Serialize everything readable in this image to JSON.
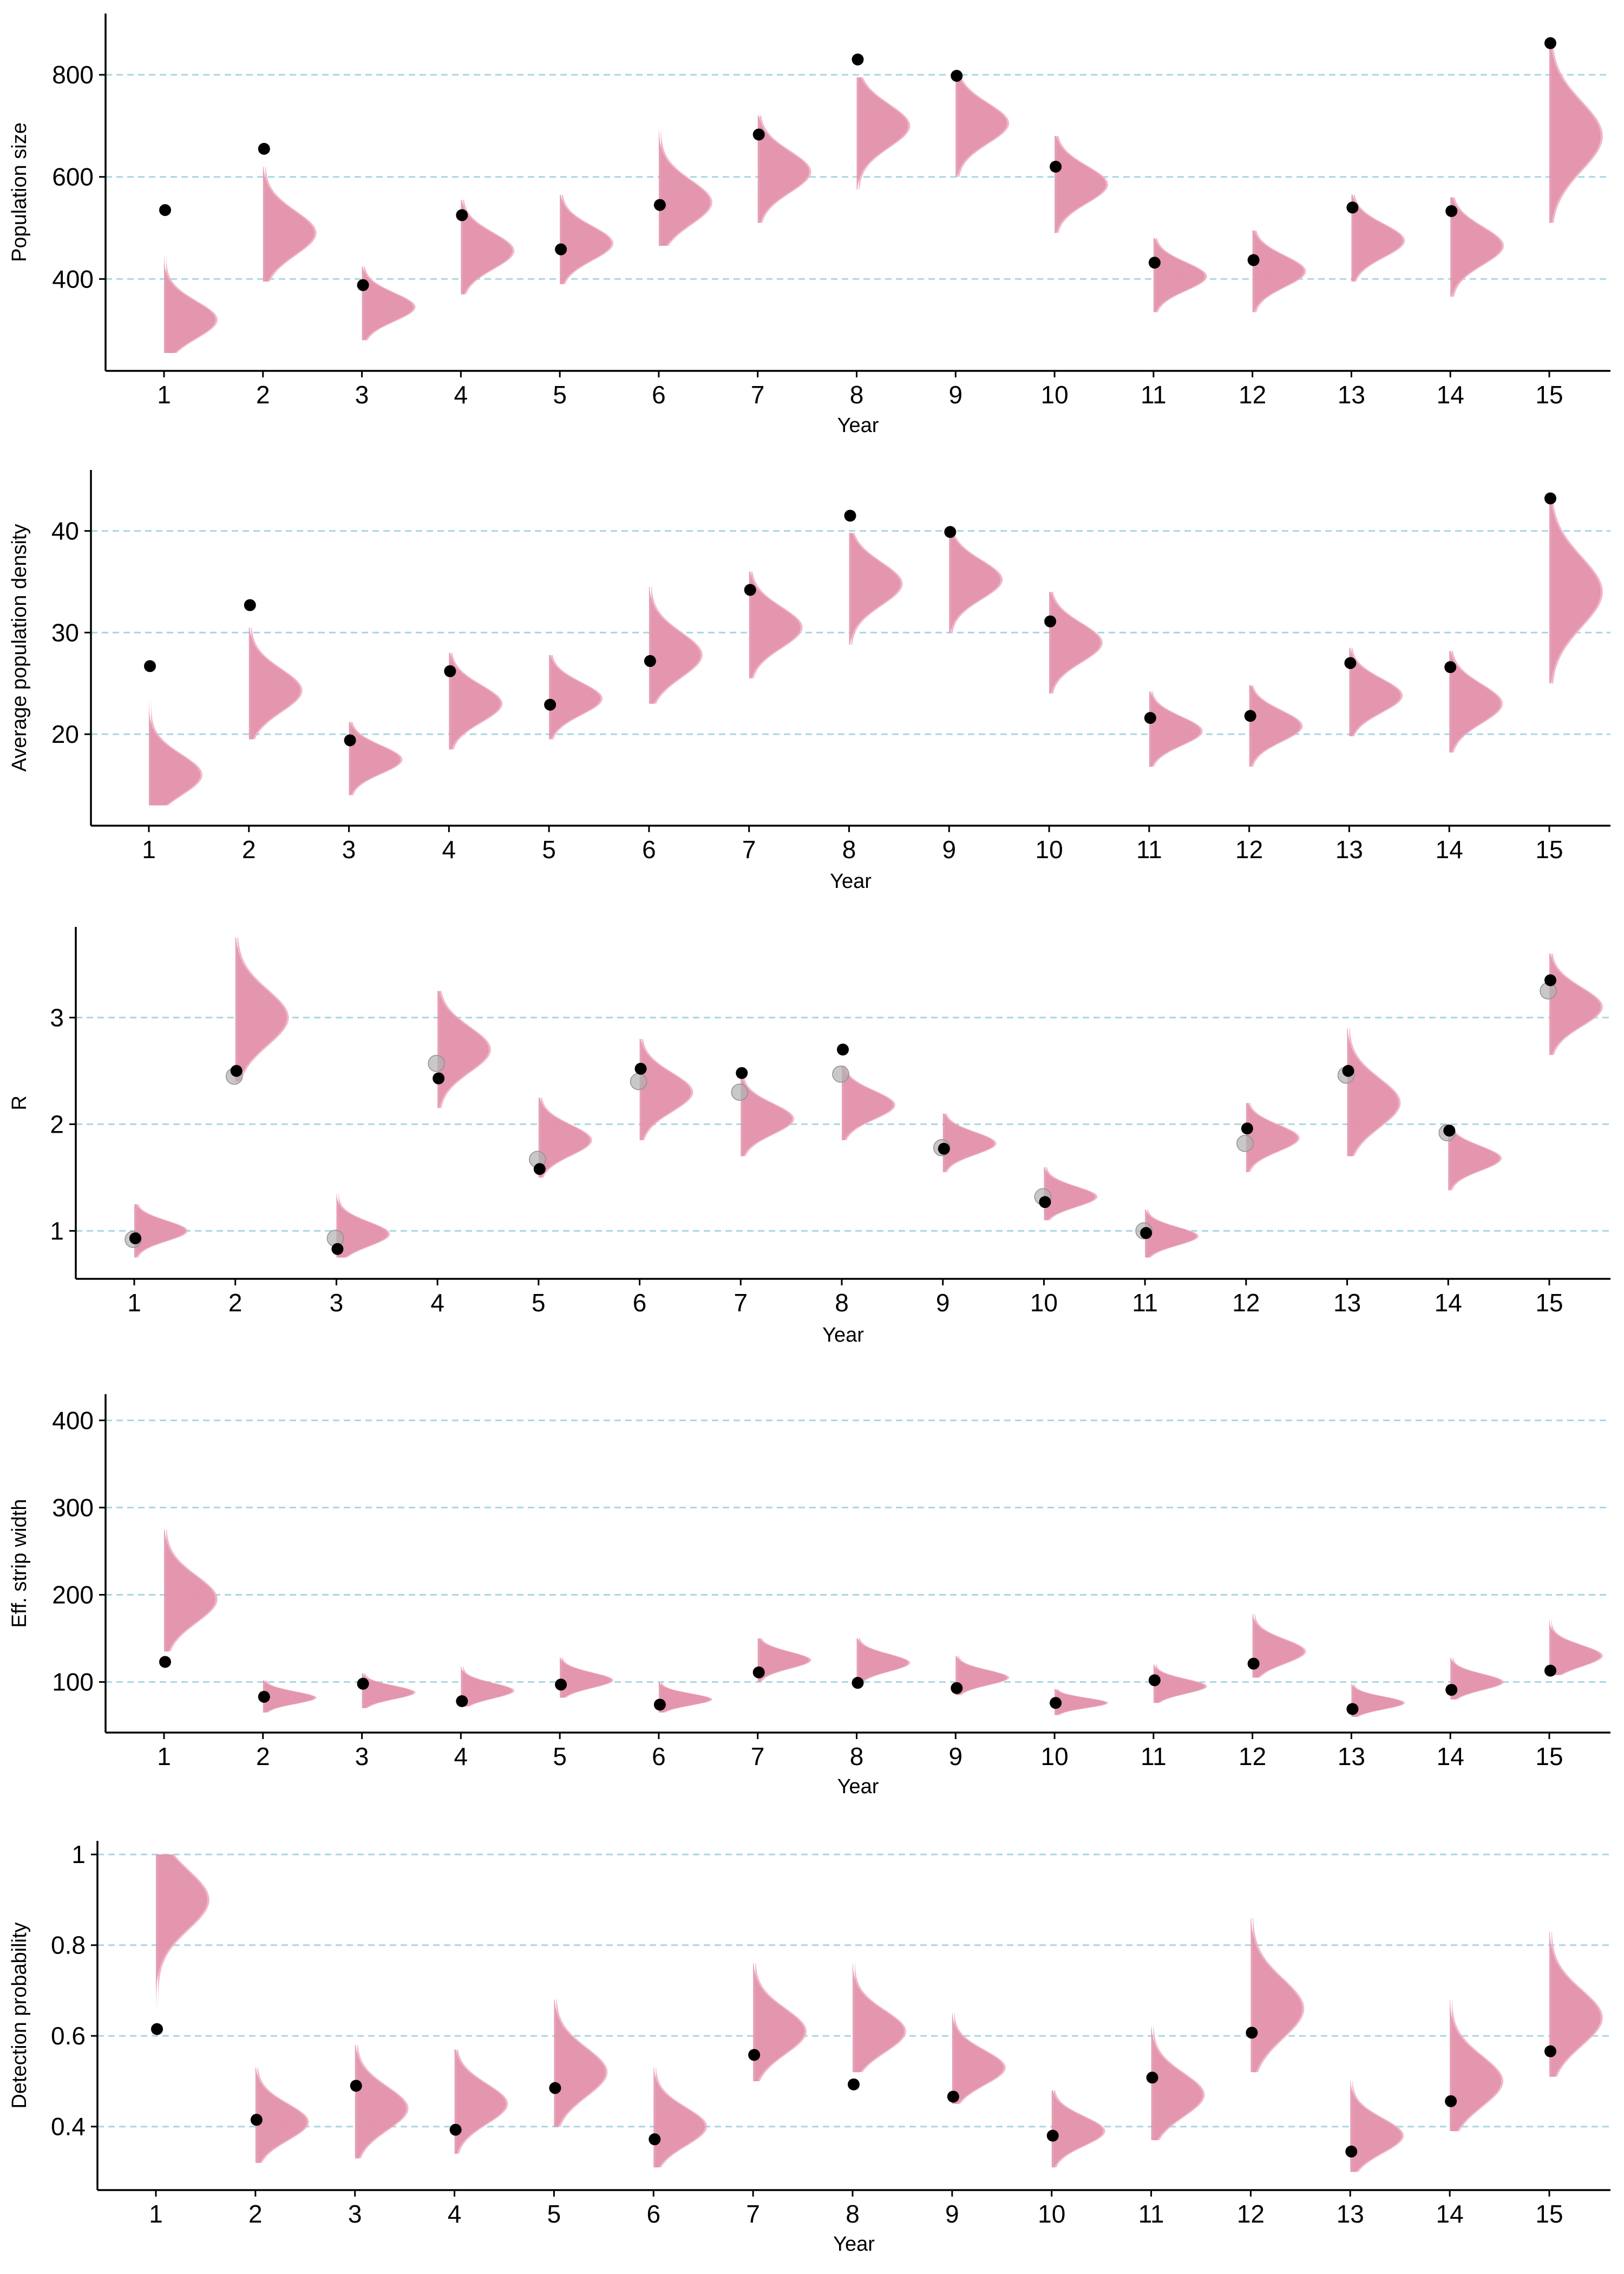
{
  "colors": {
    "violin": "#e08fa8",
    "violin_overlay": "#eeb0c2",
    "point": "#000000",
    "point_alt": "#b0b0b0",
    "gridline": "#a9d6e5",
    "axis": "#000000"
  },
  "chart_data": [
    {
      "type": "violin",
      "xlabel": "Year",
      "ylabel": "Population size",
      "categories": [
        "1",
        "2",
        "3",
        "4",
        "5",
        "6",
        "7",
        "8",
        "9",
        "10",
        "11",
        "12",
        "13",
        "14",
        "15"
      ],
      "yticks": [
        400,
        600,
        800
      ],
      "ylim": [
        220,
        920
      ],
      "grid": true,
      "distributions": [
        {
          "median": 320,
          "min": 255,
          "max": 445
        },
        {
          "median": 490,
          "min": 395,
          "max": 620
        },
        {
          "median": 345,
          "min": 280,
          "max": 425
        },
        {
          "median": 455,
          "min": 370,
          "max": 555
        },
        {
          "median": 470,
          "min": 390,
          "max": 565
        },
        {
          "median": 550,
          "min": 465,
          "max": 690
        },
        {
          "median": 610,
          "min": 510,
          "max": 720
        },
        {
          "median": 700,
          "min": 575,
          "max": 795
        },
        {
          "median": 705,
          "min": 600,
          "max": 805
        },
        {
          "median": 585,
          "min": 490,
          "max": 680
        },
        {
          "median": 405,
          "min": 335,
          "max": 480
        },
        {
          "median": 415,
          "min": 335,
          "max": 495
        },
        {
          "median": 475,
          "min": 395,
          "max": 565
        },
        {
          "median": 465,
          "min": 365,
          "max": 560
        },
        {
          "median": 680,
          "min": 510,
          "max": 860
        }
      ],
      "points": [
        535,
        655,
        388,
        525,
        458,
        545,
        683,
        830,
        798,
        620,
        432,
        437,
        540,
        533,
        862
      ],
      "points_alt": []
    },
    {
      "type": "violin",
      "xlabel": "Year",
      "ylabel": "Average population density",
      "categories": [
        "1",
        "2",
        "3",
        "4",
        "5",
        "6",
        "7",
        "8",
        "9",
        "10",
        "11",
        "12",
        "13",
        "14",
        "15"
      ],
      "yticks": [
        20,
        30,
        40
      ],
      "ylim": [
        11,
        46
      ],
      "grid": true,
      "distributions": [
        {
          "median": 16,
          "min": 13,
          "max": 23.5
        },
        {
          "median": 24.3,
          "min": 19.5,
          "max": 30.5
        },
        {
          "median": 17.5,
          "min": 14,
          "max": 21.2
        },
        {
          "median": 23,
          "min": 18.5,
          "max": 28
        },
        {
          "median": 23.5,
          "min": 19.5,
          "max": 27.8
        },
        {
          "median": 27.8,
          "min": 23,
          "max": 34.5
        },
        {
          "median": 30.5,
          "min": 25.5,
          "max": 36
        },
        {
          "median": 34.8,
          "min": 28.8,
          "max": 39.8
        },
        {
          "median": 35.2,
          "min": 30,
          "max": 40
        },
        {
          "median": 29,
          "min": 24,
          "max": 34
        },
        {
          "median": 20.3,
          "min": 16.8,
          "max": 24.2
        },
        {
          "median": 20.8,
          "min": 16.8,
          "max": 24.8
        },
        {
          "median": 23.8,
          "min": 19.8,
          "max": 28.5
        },
        {
          "median": 23,
          "min": 18.2,
          "max": 28.2
        },
        {
          "median": 34,
          "min": 25,
          "max": 42.8
        }
      ],
      "points": [
        26.7,
        32.7,
        19.4,
        26.2,
        22.9,
        27.2,
        34.2,
        41.5,
        39.9,
        31.1,
        21.6,
        21.8,
        27,
        26.6,
        43.2
      ],
      "points_alt": []
    },
    {
      "type": "violin",
      "xlabel": "Year",
      "ylabel": "R",
      "categories": [
        "1",
        "2",
        "3",
        "4",
        "5",
        "6",
        "7",
        "8",
        "9",
        "10",
        "11",
        "12",
        "13",
        "14",
        "15"
      ],
      "yticks": [
        1,
        2,
        3
      ],
      "ylim": [
        0.55,
        3.85
      ],
      "grid": true,
      "distributions": [
        {
          "median": 1.0,
          "min": 0.75,
          "max": 1.25
        },
        {
          "median": 3.0,
          "min": 2.4,
          "max": 3.75
        },
        {
          "median": 0.97,
          "min": 0.75,
          "max": 1.35
        },
        {
          "median": 2.7,
          "min": 2.15,
          "max": 3.25
        },
        {
          "median": 1.85,
          "min": 1.5,
          "max": 2.25
        },
        {
          "median": 2.3,
          "min": 1.85,
          "max": 2.8
        },
        {
          "median": 2.05,
          "min": 1.7,
          "max": 2.45
        },
        {
          "median": 2.18,
          "min": 1.85,
          "max": 2.55
        },
        {
          "median": 1.82,
          "min": 1.55,
          "max": 2.1
        },
        {
          "median": 1.32,
          "min": 1.1,
          "max": 1.6
        },
        {
          "median": 0.95,
          "min": 0.75,
          "max": 1.2
        },
        {
          "median": 1.87,
          "min": 1.55,
          "max": 2.2
        },
        {
          "median": 2.2,
          "min": 1.7,
          "max": 2.9
        },
        {
          "median": 1.68,
          "min": 1.38,
          "max": 1.98
        },
        {
          "median": 3.1,
          "min": 2.65,
          "max": 3.6
        }
      ],
      "points": [
        0.93,
        2.5,
        0.83,
        2.43,
        1.58,
        2.52,
        2.48,
        2.7,
        1.77,
        1.27,
        0.98,
        1.96,
        2.5,
        1.94,
        3.35
      ],
      "points_alt": [
        0.92,
        2.45,
        0.93,
        2.57,
        1.67,
        2.4,
        2.3,
        2.47,
        1.78,
        1.32,
        1.0,
        1.82,
        2.46,
        1.92,
        3.25
      ]
    },
    {
      "type": "violin",
      "xlabel": "Year",
      "ylabel": "Eff. strip width",
      "categories": [
        "1",
        "2",
        "3",
        "4",
        "5",
        "6",
        "7",
        "8",
        "9",
        "10",
        "11",
        "12",
        "13",
        "14",
        "15"
      ],
      "yticks": [
        100,
        200,
        300,
        400
      ],
      "ylim": [
        42,
        430
      ],
      "grid": true,
      "distributions": [
        {
          "median": 195,
          "min": 135,
          "max": 275
        },
        {
          "median": 82,
          "min": 65,
          "max": 102
        },
        {
          "median": 88,
          "min": 70,
          "max": 110
        },
        {
          "median": 90,
          "min": 72,
          "max": 118
        },
        {
          "median": 102,
          "min": 82,
          "max": 128
        },
        {
          "median": 80,
          "min": 65,
          "max": 100
        },
        {
          "median": 125,
          "min": 100,
          "max": 150
        },
        {
          "median": 122,
          "min": 98,
          "max": 150
        },
        {
          "median": 105,
          "min": 85,
          "max": 130
        },
        {
          "median": 76,
          "min": 62,
          "max": 92
        },
        {
          "median": 95,
          "min": 76,
          "max": 120
        },
        {
          "median": 135,
          "min": 105,
          "max": 178
        },
        {
          "median": 76,
          "min": 60,
          "max": 98
        },
        {
          "median": 100,
          "min": 80,
          "max": 128
        },
        {
          "median": 130,
          "min": 108,
          "max": 172
        }
      ],
      "points": [
        123,
        83,
        98,
        78,
        97,
        74,
        111,
        99,
        93,
        76,
        102,
        121,
        69,
        91,
        113
      ],
      "points_alt": []
    },
    {
      "type": "violin",
      "xlabel": "Year",
      "ylabel": "Detection probability",
      "categories": [
        "1",
        "2",
        "3",
        "4",
        "5",
        "6",
        "7",
        "8",
        "9",
        "10",
        "11",
        "12",
        "13",
        "14",
        "15"
      ],
      "yticks": [
        0.4,
        0.6,
        0.8,
        1.0
      ],
      "ylim": [
        0.26,
        1.03
      ],
      "grid": true,
      "distributions": [
        {
          "median": 0.9,
          "min": 0.66,
          "max": 1.0
        },
        {
          "median": 0.41,
          "min": 0.32,
          "max": 0.53
        },
        {
          "median": 0.44,
          "min": 0.33,
          "max": 0.58
        },
        {
          "median": 0.45,
          "min": 0.34,
          "max": 0.57
        },
        {
          "median": 0.52,
          "min": 0.4,
          "max": 0.68
        },
        {
          "median": 0.4,
          "min": 0.31,
          "max": 0.53
        },
        {
          "median": 0.61,
          "min": 0.5,
          "max": 0.76
        },
        {
          "median": 0.61,
          "min": 0.52,
          "max": 0.76
        },
        {
          "median": 0.53,
          "min": 0.45,
          "max": 0.65
        },
        {
          "median": 0.39,
          "min": 0.31,
          "max": 0.48
        },
        {
          "median": 0.47,
          "min": 0.37,
          "max": 0.62
        },
        {
          "median": 0.66,
          "min": 0.52,
          "max": 0.86
        },
        {
          "median": 0.38,
          "min": 0.3,
          "max": 0.5
        },
        {
          "median": 0.5,
          "min": 0.39,
          "max": 0.68
        },
        {
          "median": 0.64,
          "min": 0.51,
          "max": 0.83
        }
      ],
      "points": [
        0.615,
        0.415,
        0.49,
        0.393,
        0.485,
        0.372,
        0.558,
        0.493,
        0.466,
        0.38,
        0.508,
        0.607,
        0.345,
        0.456,
        0.566
      ],
      "points_alt": []
    }
  ]
}
